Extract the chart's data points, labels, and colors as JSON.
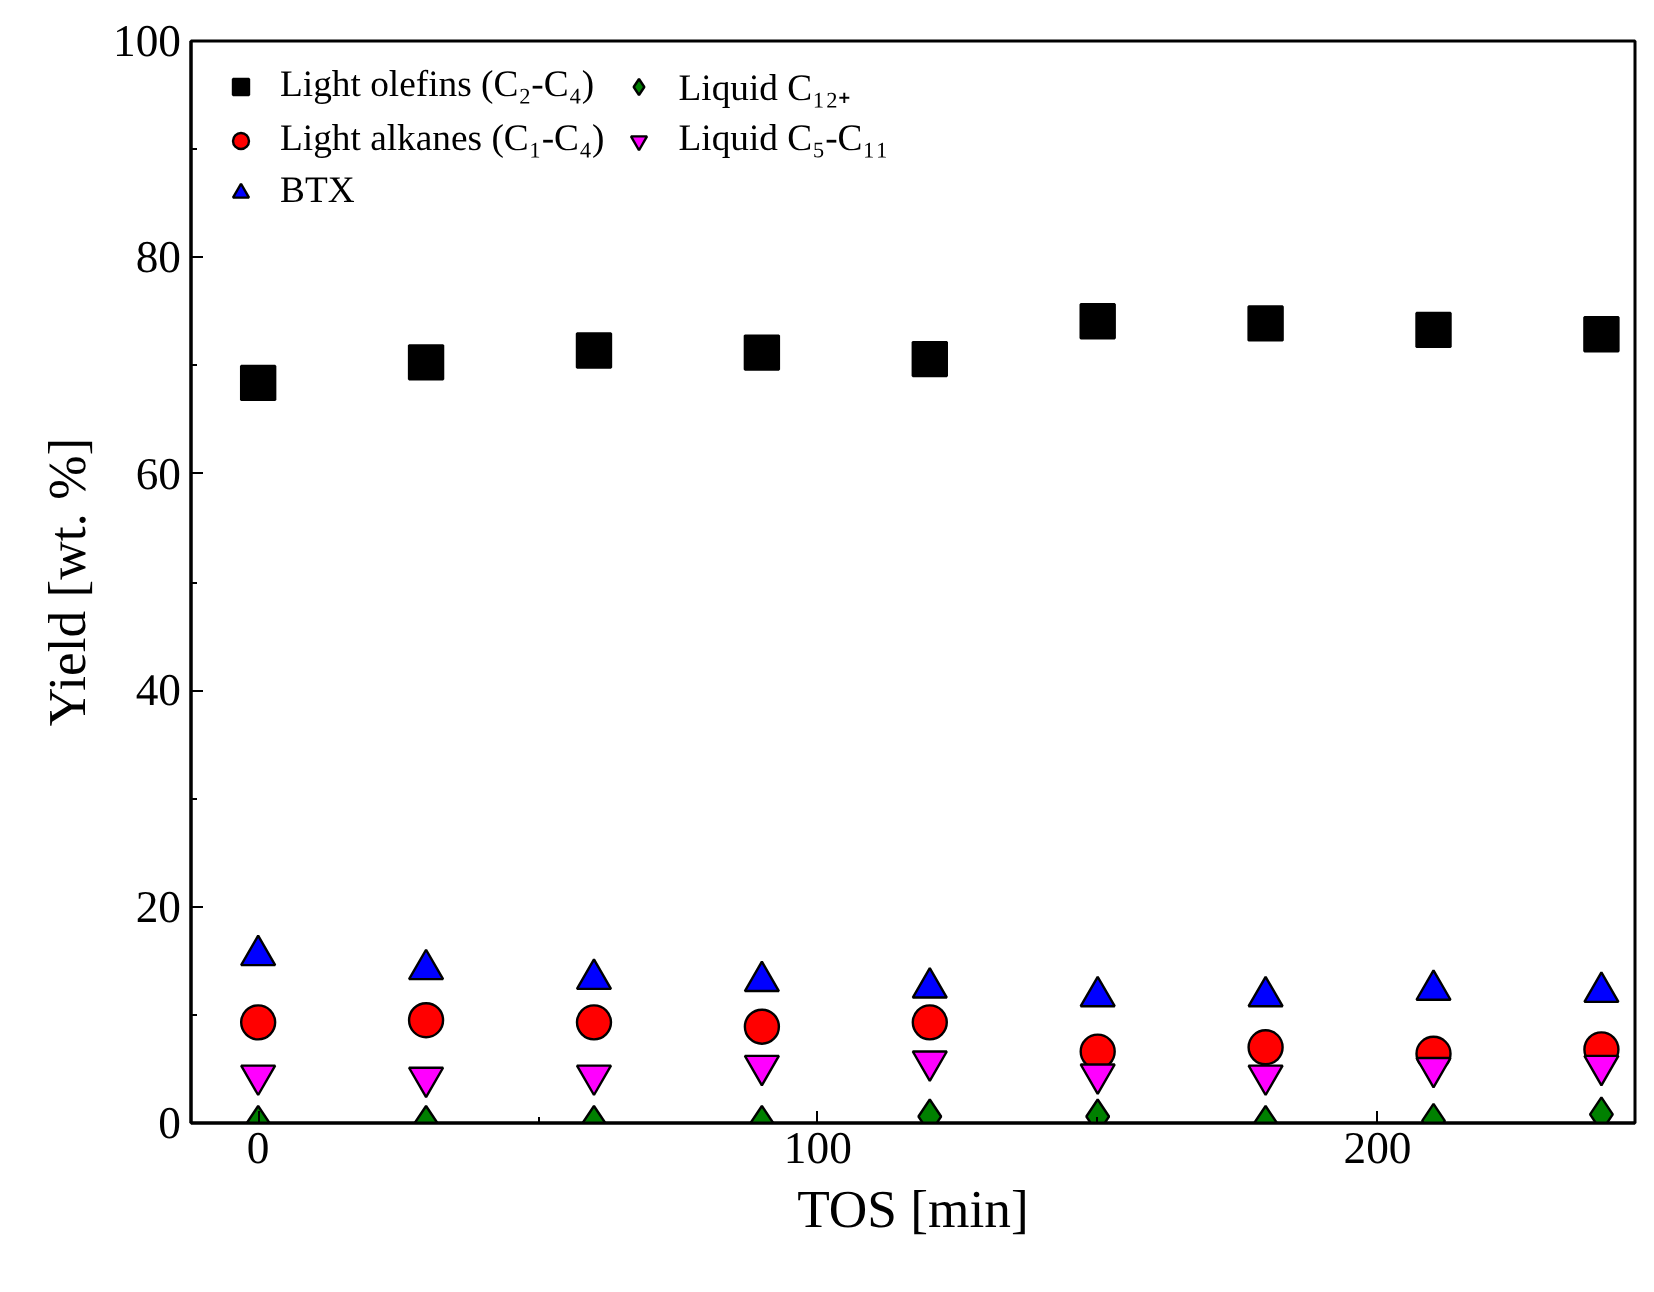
{
  "chart_data": {
    "type": "scatter",
    "xlabel": "TOS [min]",
    "ylabel": "Yield [wt. %]",
    "x": [
      0,
      30,
      60,
      90,
      120,
      150,
      180,
      210,
      240
    ],
    "xlim": [
      -12,
      246
    ],
    "ylim": [
      0,
      100
    ],
    "xticks": [
      0,
      100,
      200
    ],
    "yticks": [
      0,
      20,
      40,
      60,
      80,
      100
    ],
    "grid": false,
    "legend": "top left",
    "series": [
      {
        "name": "Light olefins (C₂-C₄)",
        "color": "#000000",
        "marker": "square",
        "values": [
          68.4,
          70.3,
          71.4,
          71.2,
          70.6,
          74.1,
          73.9,
          73.3,
          72.9
        ]
      },
      {
        "name": "Light alkanes (C₁-C₄)",
        "color": "#ff0000",
        "marker": "circle",
        "values": [
          9.3,
          9.5,
          9.3,
          8.9,
          9.3,
          6.6,
          7.0,
          6.4,
          6.8
        ]
      },
      {
        "name": "BTX",
        "color": "#0000ff",
        "marker": "triangle",
        "values": [
          15.5,
          14.2,
          13.3,
          13.1,
          12.5,
          11.7,
          11.7,
          12.3,
          12.1
        ]
      },
      {
        "name": "Liquid C₁₂₊",
        "color": "#008000",
        "marker": "diamond",
        "values": [
          0.0,
          0.0,
          0.0,
          0.0,
          0.6,
          0.6,
          0.0,
          0.2,
          0.8
        ]
      },
      {
        "name": "Liquid C₅-C₁₁",
        "color": "#ff00ff",
        "marker": "triangle",
        "values": [
          4.4,
          4.2,
          4.4,
          5.3,
          5.7,
          4.5,
          4.4,
          5.1,
          5.3
        ]
      }
    ]
  }
}
